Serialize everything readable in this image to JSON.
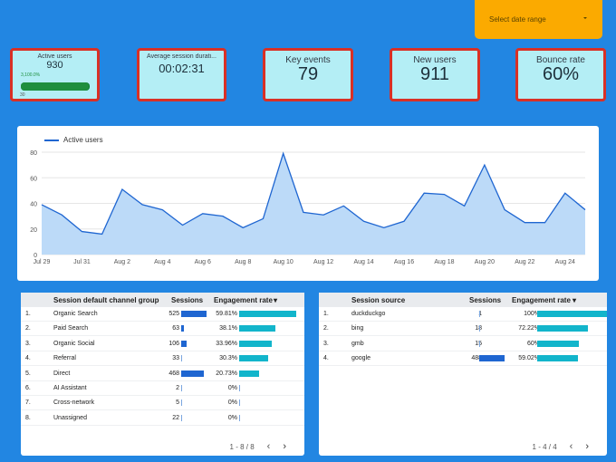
{
  "date_range": {
    "label": "Select date range"
  },
  "kpis": {
    "active_users": {
      "title": "Active users",
      "value": "930",
      "gauge_max": "3,100.0%",
      "gauge_min": "30",
      "gauge_fraction": 0.99
    },
    "avg_session": {
      "title": "Average session durati...",
      "value": "00:02:31"
    },
    "key_events": {
      "title": "Key events",
      "value": "79"
    },
    "new_users": {
      "title": "New users",
      "value": "911"
    },
    "bounce_rate": {
      "title": "Bounce rate",
      "value": "60%"
    }
  },
  "chart_data": {
    "type": "area",
    "legend": "Active users",
    "series": [
      {
        "name": "Active users",
        "values": [
          39,
          31,
          18,
          16,
          51,
          39,
          35,
          23,
          32,
          30,
          21,
          28,
          79,
          33,
          31,
          38,
          26,
          21,
          26,
          48,
          47,
          38,
          70,
          35,
          25,
          25,
          48,
          35
        ]
      }
    ],
    "x_labels": [
      "Jul 29",
      "Jul 31",
      "Aug 2",
      "Aug 4",
      "Aug 6",
      "Aug 8",
      "Aug 10",
      "Aug 12",
      "Aug 14",
      "Aug 16",
      "Aug 18",
      "Aug 20",
      "Aug 22",
      "Aug 24"
    ],
    "y_ticks": [
      0,
      20,
      40,
      60,
      80
    ],
    "ylim": [
      0,
      80
    ],
    "color": "#1f66d1",
    "fill": "#bcdaf8"
  },
  "table_channels": {
    "headers": {
      "channel": "Session default channel group",
      "sessions": "Sessions",
      "engagement": "Engagement rate"
    },
    "sort_icon": "▾",
    "rows": [
      {
        "idx": "1.",
        "name": "Organic Search",
        "sessions": "525",
        "sessions_num": 525,
        "rate": "59.81%",
        "rate_num": 59.81
      },
      {
        "idx": "2.",
        "name": "Paid Search",
        "sessions": "63",
        "sessions_num": 63,
        "rate": "38.1%",
        "rate_num": 38.1
      },
      {
        "idx": "3.",
        "name": "Organic Social",
        "sessions": "106",
        "sessions_num": 106,
        "rate": "33.96%",
        "rate_num": 33.96
      },
      {
        "idx": "4.",
        "name": "Referral",
        "sessions": "33",
        "sessions_num": 33,
        "rate": "30.3%",
        "rate_num": 30.3
      },
      {
        "idx": "5.",
        "name": "Direct",
        "sessions": "468",
        "sessions_num": 468,
        "rate": "20.73%",
        "rate_num": 20.73
      },
      {
        "idx": "6.",
        "name": "AI Assistant",
        "sessions": "2",
        "sessions_num": 2,
        "rate": "0%",
        "rate_num": 0
      },
      {
        "idx": "7.",
        "name": "Cross-network",
        "sessions": "5",
        "sessions_num": 5,
        "rate": "0%",
        "rate_num": 0
      },
      {
        "idx": "8.",
        "name": "Unassigned",
        "sessions": "22",
        "sessions_num": 22,
        "rate": "0%",
        "rate_num": 0
      }
    ],
    "pager": "1 - 8 / 8"
  },
  "table_sources": {
    "headers": {
      "source": "Session source",
      "sessions": "Sessions",
      "engagement": "Engagement rate"
    },
    "sort_icon": "▾",
    "rows": [
      {
        "idx": "1.",
        "name": "duckduckgo",
        "sessions": "1",
        "sessions_num": 1,
        "rate": "100%",
        "rate_num": 100
      },
      {
        "idx": "2.",
        "name": "bing",
        "sessions": "18",
        "sessions_num": 18,
        "rate": "72.22%",
        "rate_num": 72.22
      },
      {
        "idx": "3.",
        "name": "gmb",
        "sessions": "15",
        "sessions_num": 15,
        "rate": "60%",
        "rate_num": 60
      },
      {
        "idx": "4.",
        "name": "google",
        "sessions": "488",
        "sessions_num": 488,
        "rate": "59.02%",
        "rate_num": 59.02
      }
    ],
    "pager": "1 - 4 / 4"
  },
  "colors": {
    "background": "#2286e2",
    "accent_orange": "#fbaa00",
    "kpi_bg": "#b4eef5",
    "kpi_border": "#d93025",
    "bar_blue": "#1f66d1",
    "bar_teal": "#12b5cb"
  },
  "icons": {
    "prev": "chevron-left-icon",
    "next": "chevron-right-icon",
    "caret": "caret-down-icon"
  }
}
